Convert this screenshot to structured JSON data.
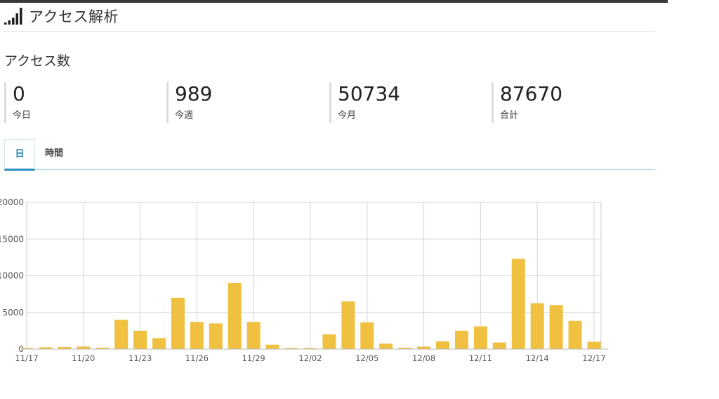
{
  "header": {
    "title": "アクセス解析",
    "icon": "signal-bars-icon"
  },
  "section": {
    "title": "アクセス数"
  },
  "stats": [
    {
      "value": "0",
      "label": "今日"
    },
    {
      "value": "989",
      "label": "今週"
    },
    {
      "value": "50734",
      "label": "今月"
    },
    {
      "value": "87670",
      "label": "合計"
    }
  ],
  "tabs": [
    {
      "label": "日",
      "active": true
    },
    {
      "label": "時間",
      "active": false
    }
  ],
  "colors": {
    "bar": "#f0c040",
    "accent": "#2a8fc4"
  },
  "chart_data": {
    "type": "bar",
    "ylim": [
      0,
      20000
    ],
    "yticks": [
      "0",
      "5000",
      "10000",
      "15000",
      "20000"
    ],
    "xticks": [
      "11/17",
      "11/20",
      "11/23",
      "11/26",
      "11/29",
      "12/02",
      "12/05",
      "12/08",
      "12/11",
      "12/14",
      "12/17"
    ],
    "categories": [
      "11/17",
      "11/18",
      "11/19",
      "11/20",
      "11/21",
      "11/22",
      "11/23",
      "11/24",
      "11/25",
      "11/26",
      "11/27",
      "11/28",
      "11/29",
      "11/30",
      "12/01",
      "12/02",
      "12/03",
      "12/04",
      "12/05",
      "12/06",
      "12/07",
      "12/08",
      "12/09",
      "12/10",
      "12/11",
      "12/12",
      "12/13",
      "12/14",
      "12/15",
      "12/16",
      "12/17"
    ],
    "values": [
      150,
      250,
      300,
      350,
      200,
      4000,
      2500,
      1500,
      7000,
      3700,
      3500,
      9000,
      3700,
      600,
      150,
      150,
      2000,
      6500,
      3650,
      750,
      200,
      350,
      1050,
      2500,
      3100,
      900,
      12300,
      6250,
      6000,
      3850,
      1000
    ],
    "grid": true,
    "legend": "none"
  }
}
